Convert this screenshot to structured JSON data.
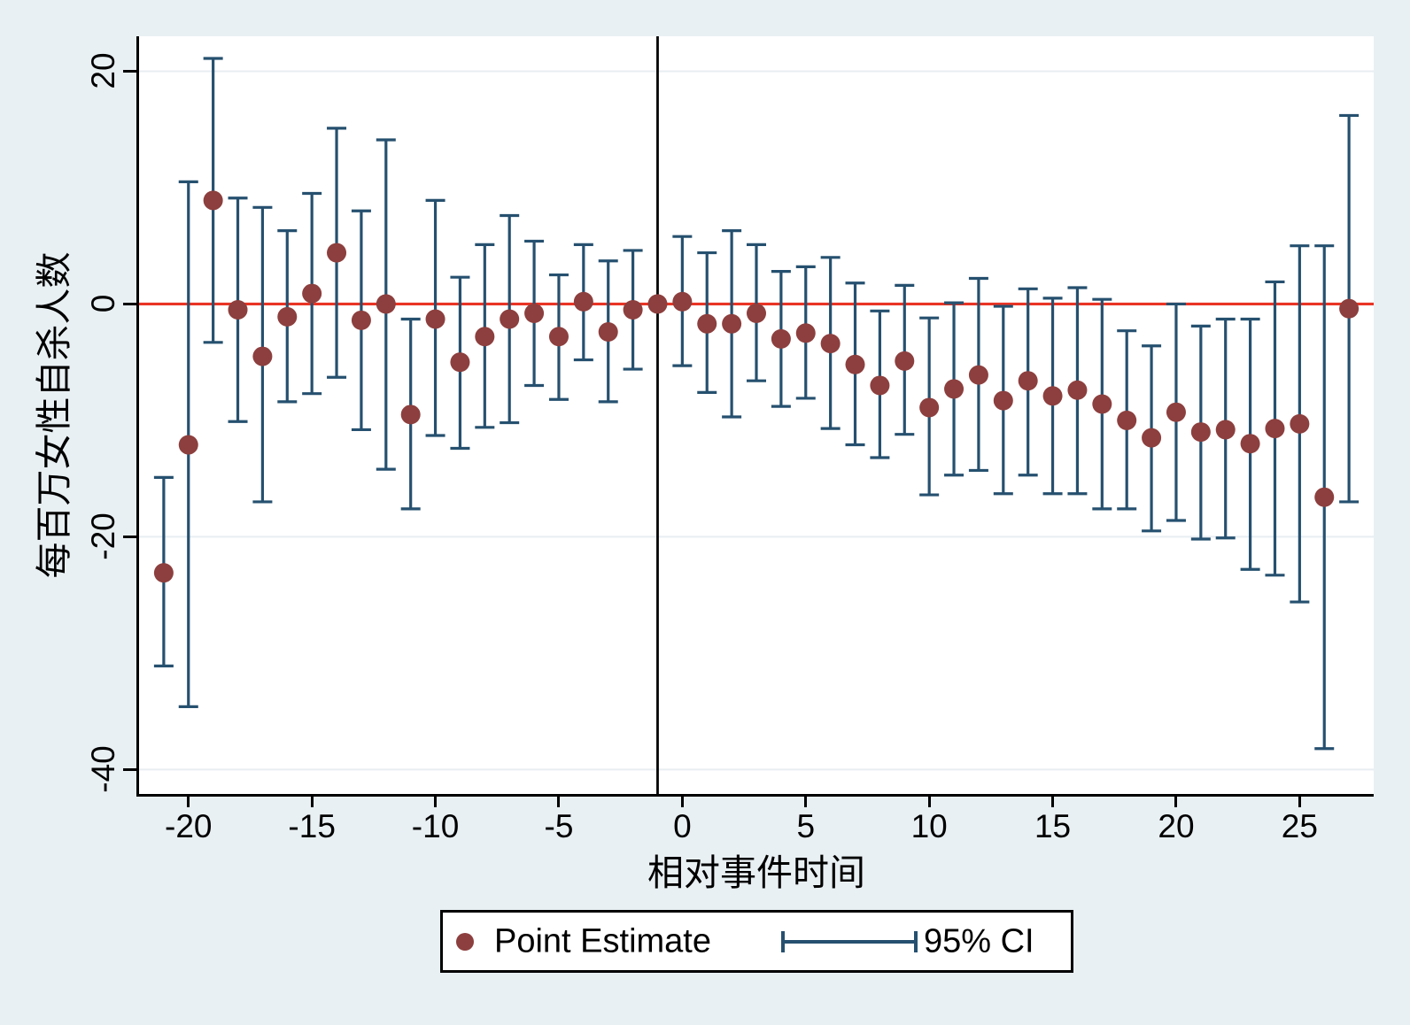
{
  "colors": {
    "point": "#8c3f3e",
    "ci": "#26506f",
    "zero_line": "#e93425",
    "event_line": "#000000",
    "grid": "#e8eef2",
    "axis": "#000000",
    "plot_bg": "#ffffff",
    "page_bg": "#e9f0f3",
    "text": "#000000"
  },
  "legend": {
    "point_label": "Point Estimate",
    "ci_label": "95% CI"
  },
  "chart_data": {
    "type": "scatter",
    "subtype": "event-study errorbar",
    "title": "",
    "xlabel": "相对事件时间",
    "ylabel": "每百万女性自杀人数",
    "xlim": [
      -22,
      28
    ],
    "ylim": [
      -42.1,
      23
    ],
    "grid": true,
    "legend_position": "bottom-center",
    "ref_hline_y": 0,
    "ref_vline_x": -1,
    "x_ticks": [
      {
        "v": -20,
        "label": "-20"
      },
      {
        "v": -15,
        "label": "-15"
      },
      {
        "v": -10,
        "label": "-10"
      },
      {
        "v": -5,
        "label": "-5"
      },
      {
        "v": 0,
        "label": "0"
      },
      {
        "v": 5,
        "label": "5"
      },
      {
        "v": 10,
        "label": "10"
      },
      {
        "v": 15,
        "label": "15"
      },
      {
        "v": 20,
        "label": "20"
      },
      {
        "v": 25,
        "label": "25"
      }
    ],
    "y_ticks": [
      {
        "v": 20,
        "label": "20"
      },
      {
        "v": 0,
        "label": "0"
      },
      {
        "v": -20,
        "label": "-20"
      },
      {
        "v": -40,
        "label": "-40"
      }
    ],
    "series": [
      {
        "name": "Point Estimate",
        "points": [
          {
            "x": -21,
            "y": -23.1,
            "lo": -31.1,
            "hi": -14.9
          },
          {
            "x": -20,
            "y": -12.1,
            "lo": -34.6,
            "hi": 10.5
          },
          {
            "x": -19,
            "y": 8.9,
            "lo": -3.3,
            "hi": 21.1
          },
          {
            "x": -18,
            "y": -0.5,
            "lo": -10.1,
            "hi": 9.1
          },
          {
            "x": -17,
            "y": -4.5,
            "lo": -17.0,
            "hi": 8.3
          },
          {
            "x": -16,
            "y": -1.1,
            "lo": -8.4,
            "hi": 6.3
          },
          {
            "x": -15,
            "y": 0.9,
            "lo": -7.7,
            "hi": 9.5
          },
          {
            "x": -14,
            "y": 4.4,
            "lo": -6.3,
            "hi": 15.1
          },
          {
            "x": -13,
            "y": -1.4,
            "lo": -10.8,
            "hi": 8.0
          },
          {
            "x": -12,
            "y": 0.0,
            "lo": -14.2,
            "hi": 14.1
          },
          {
            "x": -11,
            "y": -9.5,
            "lo": -17.6,
            "hi": -1.3
          },
          {
            "x": -10,
            "y": -1.3,
            "lo": -11.3,
            "hi": 8.9
          },
          {
            "x": -9,
            "y": -5.0,
            "lo": -12.4,
            "hi": 2.3
          },
          {
            "x": -8,
            "y": -2.8,
            "lo": -10.6,
            "hi": 5.1
          },
          {
            "x": -7,
            "y": -1.3,
            "lo": -10.2,
            "hi": 7.6
          },
          {
            "x": -6,
            "y": -0.8,
            "lo": -7.0,
            "hi": 5.4
          },
          {
            "x": -5,
            "y": -2.8,
            "lo": -8.2,
            "hi": 2.5
          },
          {
            "x": -4,
            "y": 0.2,
            "lo": -4.8,
            "hi": 5.1
          },
          {
            "x": -3,
            "y": -2.4,
            "lo": -8.4,
            "hi": 3.7
          },
          {
            "x": -2,
            "y": -0.5,
            "lo": -5.6,
            "hi": 4.6
          },
          {
            "x": -1,
            "y": 0.0,
            "lo": null,
            "hi": null
          },
          {
            "x": 0,
            "y": 0.2,
            "lo": -5.3,
            "hi": 5.8
          },
          {
            "x": 1,
            "y": -1.7,
            "lo": -7.6,
            "hi": 4.4
          },
          {
            "x": 2,
            "y": -1.7,
            "lo": -9.7,
            "hi": 6.3
          },
          {
            "x": 3,
            "y": -0.8,
            "lo": -6.6,
            "hi": 5.1
          },
          {
            "x": 4,
            "y": -3.0,
            "lo": -8.8,
            "hi": 2.8
          },
          {
            "x": 5,
            "y": -2.5,
            "lo": -8.1,
            "hi": 3.2
          },
          {
            "x": 6,
            "y": -3.4,
            "lo": -10.7,
            "hi": 4.0
          },
          {
            "x": 7,
            "y": -5.2,
            "lo": -12.1,
            "hi": 1.8
          },
          {
            "x": 8,
            "y": -7.0,
            "lo": -13.2,
            "hi": -0.6
          },
          {
            "x": 9,
            "y": -4.9,
            "lo": -11.2,
            "hi": 1.6
          },
          {
            "x": 10,
            "y": -8.9,
            "lo": -16.4,
            "hi": -1.2
          },
          {
            "x": 11,
            "y": -7.3,
            "lo": -14.7,
            "hi": 0.1
          },
          {
            "x": 12,
            "y": -6.1,
            "lo": -14.3,
            "hi": 2.2
          },
          {
            "x": 13,
            "y": -8.3,
            "lo": -16.3,
            "hi": -0.2
          },
          {
            "x": 14,
            "y": -6.6,
            "lo": -14.7,
            "hi": 1.3
          },
          {
            "x": 15,
            "y": -7.9,
            "lo": -16.3,
            "hi": 0.5
          },
          {
            "x": 16,
            "y": -7.4,
            "lo": -16.3,
            "hi": 1.4
          },
          {
            "x": 17,
            "y": -8.6,
            "lo": -17.6,
            "hi": 0.4
          },
          {
            "x": 18,
            "y": -10.0,
            "lo": -17.6,
            "hi": -2.3
          },
          {
            "x": 19,
            "y": -11.5,
            "lo": -19.5,
            "hi": -3.6
          },
          {
            "x": 20,
            "y": -9.3,
            "lo": -18.6,
            "hi": 0.0
          },
          {
            "x": 21,
            "y": -11.0,
            "lo": -20.2,
            "hi": -1.9
          },
          {
            "x": 22,
            "y": -10.8,
            "lo": -20.1,
            "hi": -1.3
          },
          {
            "x": 23,
            "y": -12.0,
            "lo": -22.8,
            "hi": -1.3
          },
          {
            "x": 24,
            "y": -10.7,
            "lo": -23.3,
            "hi": 1.9
          },
          {
            "x": 25,
            "y": -10.3,
            "lo": -25.6,
            "hi": 5.0
          },
          {
            "x": 26,
            "y": -16.6,
            "lo": -38.2,
            "hi": 5.0
          },
          {
            "x": 27,
            "y": -0.4,
            "lo": -17.0,
            "hi": 16.2
          }
        ]
      }
    ]
  }
}
